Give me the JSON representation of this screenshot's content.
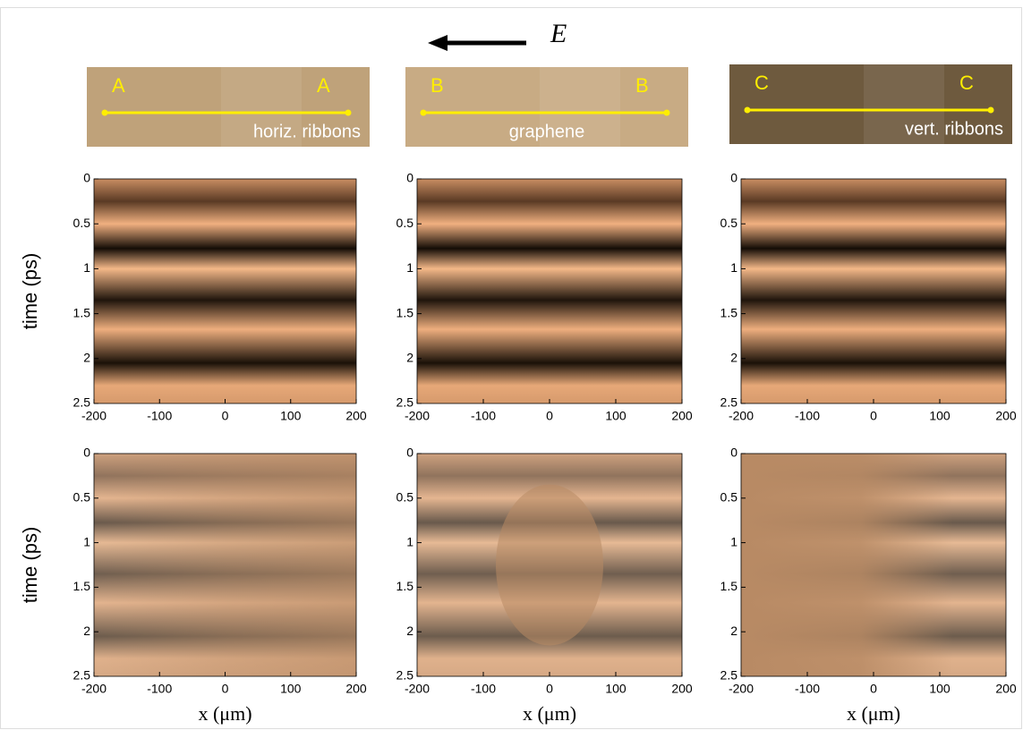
{
  "figure": {
    "field_label": "E",
    "photos": [
      {
        "letter_left": "A",
        "letter_right": "A",
        "caption": "horiz. ribbons"
      },
      {
        "letter_left": "B",
        "letter_right": "B",
        "caption": "graphene"
      },
      {
        "letter_left": "C",
        "letter_right": "C",
        "caption": "vert. ribbons"
      }
    ]
  },
  "chart_data": [
    {
      "type": "heatmap",
      "ylabel": "time (ps)",
      "xlim": [
        -200,
        200
      ],
      "ylim": [
        0,
        2.5
      ],
      "xticks": [
        -200,
        -100,
        0,
        100,
        200
      ],
      "yticks": [
        0,
        0.5,
        1,
        1.5,
        2,
        2.5
      ]
    },
    {
      "type": "heatmap",
      "xlim": [
        -200,
        200
      ],
      "ylim": [
        0,
        2.5
      ],
      "xticks": [
        -200,
        -100,
        0,
        100,
        200
      ],
      "yticks": [
        0,
        0.5,
        1,
        1.5,
        2,
        2.5
      ]
    },
    {
      "type": "heatmap",
      "xlim": [
        -200,
        200
      ],
      "ylim": [
        0,
        2.5
      ],
      "xticks": [
        -200,
        -100,
        0,
        100,
        200
      ],
      "yticks": [
        0,
        0.5,
        1,
        1.5,
        2,
        2.5
      ]
    },
    {
      "type": "heatmap",
      "ylabel": "time (ps)",
      "xlabel": "x (μm)",
      "xlim": [
        -200,
        200
      ],
      "ylim": [
        0,
        2.5
      ],
      "xticks": [
        -200,
        -100,
        0,
        100,
        200
      ],
      "yticks": [
        0,
        0.5,
        1,
        1.5,
        2,
        2.5
      ]
    },
    {
      "type": "heatmap",
      "xlabel": "x (μm)",
      "xlim": [
        -200,
        200
      ],
      "ylim": [
        0,
        2.5
      ],
      "xticks": [
        -200,
        -100,
        0,
        100,
        200
      ],
      "yticks": [
        0,
        0.5,
        1,
        1.5,
        2,
        2.5
      ]
    },
    {
      "type": "heatmap",
      "xlabel": "x (μm)",
      "xlim": [
        -200,
        200
      ],
      "ylim": [
        0,
        2.5
      ],
      "xticks": [
        -200,
        -100,
        0,
        100,
        200
      ],
      "yticks": [
        0,
        0.5,
        1,
        1.5,
        2,
        2.5
      ]
    }
  ]
}
